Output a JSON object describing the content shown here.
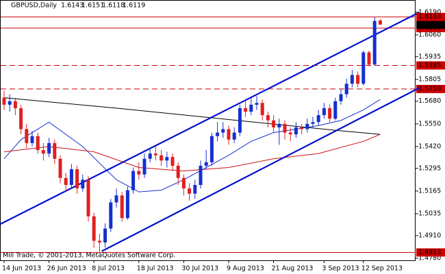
{
  "chart_data": {
    "type": "candlestick",
    "title": "GBPUSD,Daily",
    "footer": "Mill Trade, © 2001-2013, MetaQuotes Software Corp.",
    "categories": [
      "14 Jun 2013",
      null,
      null,
      null,
      null,
      null,
      null,
      null,
      "26 Jun 2013",
      null,
      null,
      null,
      null,
      null,
      null,
      null,
      "8 Jul 2013",
      null,
      null,
      null,
      null,
      null,
      null,
      null,
      "18 Jul 2013",
      null,
      null,
      null,
      null,
      null,
      null,
      null,
      "30 Jul 2013",
      null,
      null,
      null,
      null,
      null,
      null,
      null,
      "9 Aug 2013",
      null,
      null,
      null,
      null,
      null,
      null,
      null,
      "21 Aug 2013",
      null,
      null,
      null,
      null,
      null,
      null,
      null,
      null,
      "3 Sep 2013",
      null,
      null,
      null,
      null,
      null,
      null,
      "12 Sep 2013",
      null,
      null,
      null
    ],
    "open": [
      1.57,
      1.566,
      1.568,
      1.564,
      1.552,
      1.544,
      1.548,
      1.54,
      1.538,
      1.544,
      1.535,
      1.524,
      1.52,
      1.529,
      1.518,
      1.523,
      1.502,
      1.488,
      1.487,
      1.495,
      1.51,
      1.514,
      1.501,
      1.517,
      1.528,
      1.526,
      1.535,
      1.538,
      1.537,
      1.534,
      1.536,
      1.531,
      1.524,
      1.518,
      1.515,
      1.52,
      1.531,
      1.533,
      1.548,
      1.55,
      1.552,
      1.546,
      1.55,
      1.564,
      1.562,
      1.566,
      1.567,
      1.56,
      1.557,
      1.553,
      1.555,
      1.55,
      1.549,
      1.553,
      1.552,
      1.555,
      1.556,
      1.56,
      1.564,
      1.558,
      1.568,
      1.572,
      1.578,
      1.583,
      1.578,
      1.596,
      1.589,
      1.6143
    ],
    "high": [
      1.574,
      1.572,
      1.57,
      1.566,
      1.555,
      1.551,
      1.55,
      1.544,
      1.547,
      1.546,
      1.537,
      1.527,
      1.532,
      1.531,
      1.526,
      1.525,
      1.504,
      1.492,
      1.498,
      1.512,
      1.518,
      1.516,
      1.519,
      1.53,
      1.533,
      1.538,
      1.541,
      1.542,
      1.54,
      1.539,
      1.538,
      1.533,
      1.526,
      1.521,
      1.523,
      1.534,
      1.54,
      1.55,
      1.556,
      1.556,
      1.554,
      1.553,
      1.566,
      1.568,
      1.57,
      1.571,
      1.569,
      1.562,
      1.56,
      1.558,
      1.557,
      1.553,
      1.556,
      1.555,
      1.558,
      1.559,
      1.563,
      1.567,
      1.566,
      1.57,
      1.575,
      1.581,
      1.586,
      1.585,
      1.597,
      1.597,
      1.6163,
      1.6151
    ],
    "low": [
      1.563,
      1.562,
      1.56,
      1.549,
      1.541,
      1.542,
      1.538,
      1.534,
      1.536,
      1.532,
      1.521,
      1.516,
      1.518,
      1.515,
      1.516,
      1.499,
      1.484,
      1.4813,
      1.484,
      1.493,
      1.507,
      1.499,
      1.5,
      1.515,
      1.523,
      1.524,
      1.533,
      1.534,
      1.531,
      1.53,
      1.528,
      1.52,
      1.514,
      1.511,
      1.512,
      1.518,
      1.529,
      1.531,
      1.545,
      1.547,
      1.543,
      1.544,
      1.548,
      1.559,
      1.56,
      1.563,
      1.557,
      1.553,
      1.55,
      1.543,
      1.546,
      1.545,
      1.547,
      1.549,
      1.55,
      1.553,
      1.554,
      1.558,
      1.556,
      1.557,
      1.566,
      1.57,
      1.576,
      1.576,
      1.577,
      1.588,
      1.5885,
      1.6118
    ],
    "close": [
      1.566,
      1.568,
      1.564,
      1.552,
      1.544,
      1.548,
      1.54,
      1.538,
      1.544,
      1.535,
      1.524,
      1.52,
      1.529,
      1.518,
      1.523,
      1.502,
      1.488,
      1.487,
      1.495,
      1.51,
      1.514,
      1.501,
      1.517,
      1.528,
      1.526,
      1.535,
      1.538,
      1.537,
      1.534,
      1.536,
      1.531,
      1.524,
      1.518,
      1.515,
      1.52,
      1.531,
      1.533,
      1.548,
      1.55,
      1.552,
      1.546,
      1.55,
      1.564,
      1.562,
      1.566,
      1.567,
      1.56,
      1.557,
      1.553,
      1.555,
      1.55,
      1.549,
      1.553,
      1.552,
      1.555,
      1.556,
      1.56,
      1.564,
      1.558,
      1.568,
      1.572,
      1.578,
      1.583,
      1.578,
      1.596,
      1.589,
      1.614,
      1.6119
    ],
    "up_color": "#1530d0",
    "down_color": "#e02020",
    "ylim": [
      1.4768,
      1.6213
    ],
    "yticks": [
      {
        "value": 1.619,
        "label": "1.6190"
      },
      {
        "value": 1.606,
        "label": "1.6060"
      },
      1.5935,
      1.5805,
      {
        "value": 1.568,
        "label": "1.5680"
      },
      {
        "value": 1.555,
        "label": "1.5550"
      },
      {
        "value": 1.542,
        "label": "1.5420"
      },
      1.5295,
      1.5165,
      1.5035,
      {
        "value": 1.491,
        "label": "1.4910"
      },
      {
        "value": 1.478,
        "label": "1.4780"
      }
    ],
    "level_color": "#cc0000",
    "levels": [
      {
        "value": 1.6163,
        "style": "solid"
      },
      {
        "value": 1.6099,
        "style": "solid"
      },
      {
        "value": 1.5885,
        "style": "dashed"
      },
      {
        "value": 1.575,
        "label": "1.5750",
        "style": "dashed"
      },
      {
        "value": 1.4813,
        "style": "solid"
      }
    ],
    "overlays": [
      {
        "color": "#000000",
        "x": [
          0,
          20,
          40,
          60,
          67
        ],
        "values": [
          1.57,
          1.564,
          1.5575,
          1.551,
          1.549
        ]
      },
      {
        "color": "#1530d0",
        "x": [
          0,
          3,
          8,
          14,
          20,
          24,
          28,
          32,
          36,
          40,
          44,
          48,
          52,
          56,
          60,
          64,
          67
        ],
        "values": [
          1.535,
          1.546,
          1.556,
          1.542,
          1.523,
          1.516,
          1.517,
          1.523,
          1.53,
          1.537,
          1.545,
          1.55,
          1.552,
          1.554,
          1.557,
          1.563,
          1.569
        ]
      },
      {
        "color": "#cc1010",
        "x": [
          0,
          8,
          16,
          24,
          32,
          40,
          48,
          56,
          64,
          67
        ],
        "values": [
          1.539,
          1.542,
          1.539,
          1.53,
          1.528,
          1.53,
          1.535,
          1.538,
          1.545,
          1.549
        ]
      }
    ],
    "channel": {
      "color": "#0010cc",
      "lines": [
        {
          "x": [
            -0.7,
            74
          ],
          "values": [
            1.4975,
            1.619
          ]
        },
        {
          "x": [
            17.4,
            74
          ],
          "values": [
            1.482,
            1.5757
          ]
        }
      ]
    }
  }
}
